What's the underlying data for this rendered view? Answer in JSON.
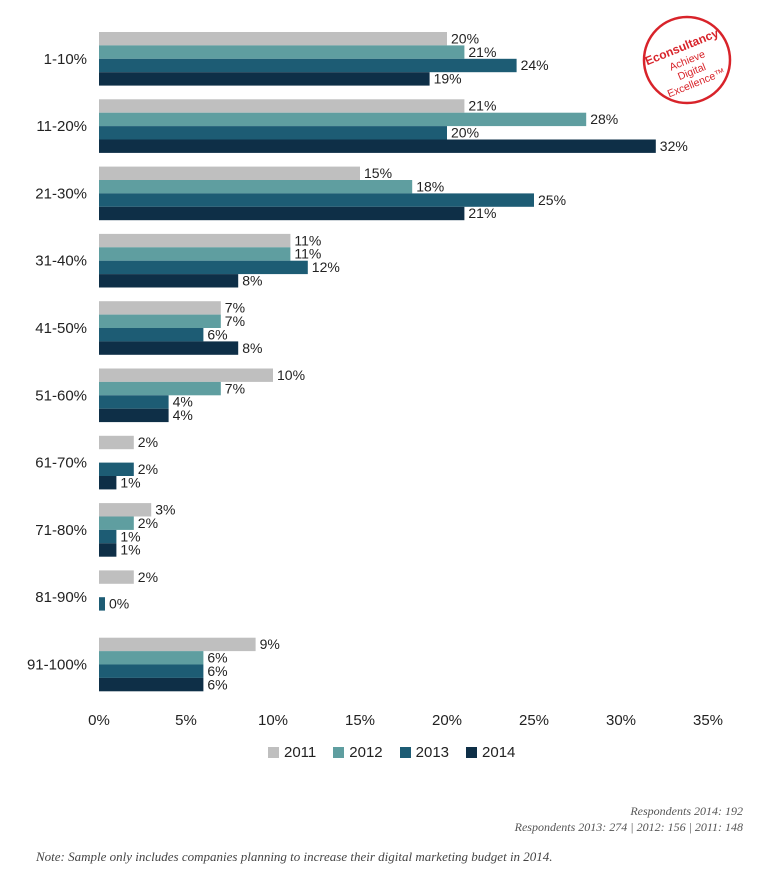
{
  "chart_data": {
    "type": "bar",
    "orientation": "horizontal",
    "categories": [
      "1-10%",
      "11-20%",
      "21-30%",
      "31-40%",
      "41-50%",
      "51-60%",
      "61-70%",
      "71-80%",
      "81-90%",
      "91-100%"
    ],
    "series": [
      {
        "name": "2011",
        "color": "#bfbfbf",
        "values": [
          20,
          21,
          15,
          11,
          7,
          10,
          2,
          3,
          2,
          9
        ]
      },
      {
        "name": "2012",
        "color": "#5f9ea0",
        "values": [
          21,
          28,
          18,
          11,
          7,
          7,
          null,
          2,
          null,
          6
        ]
      },
      {
        "name": "2013",
        "color": "#1d5c74",
        "values": [
          24,
          20,
          25,
          12,
          6,
          4,
          2,
          1,
          0,
          6
        ]
      },
      {
        "name": "2014",
        "color": "#0e2f47",
        "values": [
          19,
          32,
          21,
          8,
          8,
          4,
          1,
          1,
          null,
          6
        ]
      }
    ],
    "data_labels": [
      [
        "20%",
        "21%",
        "15%",
        "11%",
        "7%",
        "10%",
        "2%",
        "3%",
        "2%",
        "9%"
      ],
      [
        "21%",
        "28%",
        "18%",
        "11%",
        "7%",
        "7%",
        "",
        "2%",
        "",
        "6%"
      ],
      [
        "24%",
        "20%",
        "25%",
        "12%",
        "6%",
        "4%",
        "2%",
        "1%",
        "0%",
        "6%"
      ],
      [
        "19%",
        "32%",
        "21%",
        "8%",
        "8%",
        "4%",
        "1%",
        "1%",
        "",
        "6%"
      ]
    ],
    "xlim": [
      0,
      35
    ],
    "xticks": [
      0,
      5,
      10,
      15,
      20,
      25,
      30,
      35
    ],
    "xtick_labels": [
      "0%",
      "5%",
      "10%",
      "15%",
      "20%",
      "25%",
      "30%",
      "35%"
    ],
    "legend_position": "bottom",
    "grid": false
  },
  "logo": {
    "name": "Econsultancy",
    "tagline_1": "Achieve",
    "tagline_2": "Digital",
    "tagline_3": "Excellence™",
    "color": "#d8232a"
  },
  "footnotes": {
    "respondents_2014": "Respondents 2014: 192",
    "respondents_other": "Respondents 2013: 274 | 2012: 156 | 2011: 148",
    "note": "Note: Sample only includes companies planning to increase their digital marketing budget in 2014."
  }
}
